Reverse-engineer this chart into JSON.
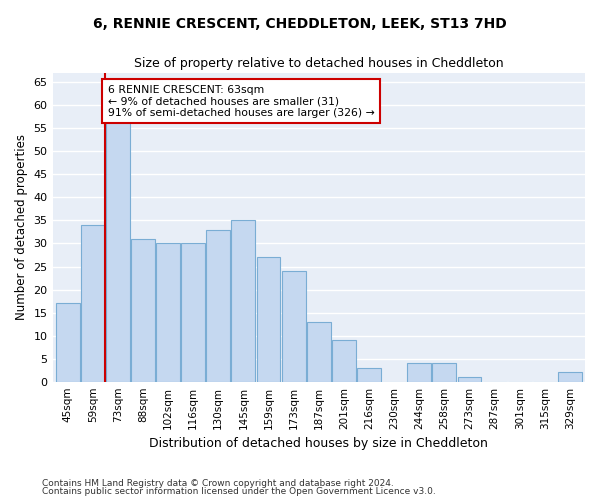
{
  "title1": "6, RENNIE CRESCENT, CHEDDLETON, LEEK, ST13 7HD",
  "title2": "Size of property relative to detached houses in Cheddleton",
  "xlabel": "Distribution of detached houses by size in Cheddleton",
  "ylabel": "Number of detached properties",
  "categories": [
    "45sqm",
    "59sqm",
    "73sqm",
    "88sqm",
    "102sqm",
    "116sqm",
    "130sqm",
    "145sqm",
    "159sqm",
    "173sqm",
    "187sqm",
    "201sqm",
    "216sqm",
    "230sqm",
    "244sqm",
    "258sqm",
    "273sqm",
    "287sqm",
    "301sqm",
    "315sqm",
    "329sqm"
  ],
  "values": [
    17,
    34,
    57,
    31,
    30,
    30,
    33,
    35,
    27,
    24,
    13,
    9,
    3,
    0,
    4,
    4,
    1,
    0,
    0,
    0,
    2
  ],
  "bar_color": "#c5d8f0",
  "bar_edge_color": "#7aadd4",
  "annotation_text": "6 RENNIE CRESCENT: 63sqm\n← 9% of detached houses are smaller (31)\n91% of semi-detached houses are larger (326) →",
  "annotation_box_color": "#ffffff",
  "annotation_box_edge_color": "#cc0000",
  "property_line_color": "#cc0000",
  "ylim": [
    0,
    67
  ],
  "yticks": [
    0,
    5,
    10,
    15,
    20,
    25,
    30,
    35,
    40,
    45,
    50,
    55,
    60,
    65
  ],
  "bg_color": "#e8eef7",
  "grid_color": "#ffffff",
  "footnote1": "Contains HM Land Registry data © Crown copyright and database right 2024.",
  "footnote2": "Contains public sector information licensed under the Open Government Licence v3.0."
}
